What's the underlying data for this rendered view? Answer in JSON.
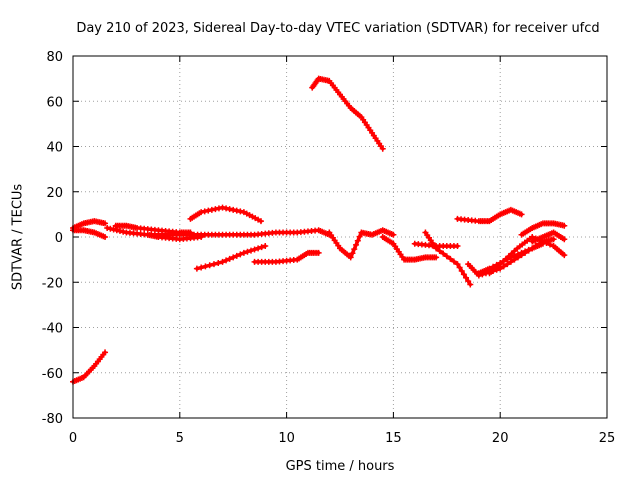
{
  "chart_data": {
    "type": "scatter",
    "title": "Day 210 of 2023, Sidereal Day-to-day VTEC variation (SDTVAR) for receiver ufcd",
    "xlabel": "GPS time / hours",
    "ylabel": "SDTVAR / TECUs",
    "xlim": [
      0,
      25
    ],
    "ylim": [
      -80,
      80
    ],
    "xticks": [
      "0",
      "5",
      "10",
      "15",
      "20",
      "25"
    ],
    "yticks": [
      "80",
      "60",
      "40",
      "20",
      "0",
      "-20",
      "-40",
      "-60",
      "-80"
    ],
    "grid": true,
    "marker_color": "#ff0000",
    "series": [
      {
        "name": "s1",
        "x": [
          0.0,
          0.5,
          1.0,
          1.5
        ],
        "y": [
          4,
          6,
          7,
          6
        ]
      },
      {
        "name": "s2",
        "x": [
          0.0,
          0.5,
          1.0,
          1.5
        ],
        "y": [
          3,
          3,
          2,
          0
        ]
      },
      {
        "name": "s3",
        "x": [
          0.0,
          0.5,
          1.0,
          1.5
        ],
        "y": [
          -64,
          -62,
          -57,
          -51
        ]
      },
      {
        "name": "s4",
        "x": [
          1.6,
          2.5,
          3.5,
          4.5,
          5.5,
          6.5,
          7.5,
          8.5,
          9.5,
          10.5,
          11.5,
          12.0
        ],
        "y": [
          4,
          2,
          1,
          1,
          1,
          1,
          1,
          1,
          2,
          2,
          3,
          1
        ]
      },
      {
        "name": "s5",
        "x": [
          2.0,
          2.5,
          3.0,
          4.0,
          5.0,
          5.5
        ],
        "y": [
          5,
          5,
          4,
          3,
          2,
          2
        ]
      },
      {
        "name": "s6",
        "x": [
          3.5,
          4.0,
          5.0,
          6.0
        ],
        "y": [
          1,
          0,
          -1,
          0
        ]
      },
      {
        "name": "s7",
        "x": [
          5.5,
          6.0,
          7.0,
          8.0,
          8.8
        ],
        "y": [
          8,
          11,
          13,
          11,
          7
        ]
      },
      {
        "name": "s8",
        "x": [
          5.8,
          7.0,
          8.0,
          9.0
        ],
        "y": [
          -14,
          -11,
          -7,
          -4
        ]
      },
      {
        "name": "s9",
        "x": [
          8.5,
          9.5,
          10.5,
          11.0,
          11.5
        ],
        "y": [
          -11,
          -11,
          -10,
          -7,
          -7
        ]
      },
      {
        "name": "s10",
        "x": [
          11.2,
          11.5,
          12.0,
          12.5,
          13.0,
          13.5,
          14.0,
          14.5
        ],
        "y": [
          66,
          70,
          69,
          63,
          57,
          53,
          46,
          39
        ]
      },
      {
        "name": "s11",
        "x": [
          12.0,
          12.5,
          13.0,
          13.5,
          14.0,
          14.5,
          15.0
        ],
        "y": [
          2,
          -5,
          -9,
          2,
          1,
          3,
          1
        ]
      },
      {
        "name": "s12",
        "x": [
          14.5,
          15.0,
          15.5,
          16.0,
          16.5,
          17.0
        ],
        "y": [
          0,
          -3,
          -10,
          -10,
          -9,
          -9
        ]
      },
      {
        "name": "s13",
        "x": [
          16.0,
          17.0,
          18.0
        ],
        "y": [
          -3,
          -4,
          -4
        ]
      },
      {
        "name": "s14",
        "x": [
          16.5,
          17.0,
          18.0,
          18.6
        ],
        "y": [
          2,
          -5,
          -12,
          -21
        ]
      },
      {
        "name": "s15",
        "x": [
          18.0,
          19.0,
          19.5,
          20.0,
          20.5,
          21.0
        ],
        "y": [
          8,
          7,
          7,
          10,
          12,
          10
        ]
      },
      {
        "name": "s16",
        "x": [
          18.5,
          19.0,
          20.0,
          21.0,
          22.0,
          22.5
        ],
        "y": [
          -12,
          -17,
          -14,
          -8,
          -2,
          -1
        ]
      },
      {
        "name": "s17",
        "x": [
          19.0,
          19.5,
          20.5,
          21.5,
          22.0
        ],
        "y": [
          -16,
          -14,
          -9,
          -5,
          -3
        ]
      },
      {
        "name": "s18",
        "x": [
          19.5,
          20.0,
          20.8,
          21.5,
          22.5,
          23.0
        ],
        "y": [
          -16,
          -12,
          -5,
          0,
          -4,
          -8
        ]
      },
      {
        "name": "s19",
        "x": [
          21.0,
          21.5,
          22.0,
          22.5,
          23.0
        ],
        "y": [
          1,
          4,
          6,
          6,
          5
        ]
      },
      {
        "name": "s20",
        "x": [
          21.5,
          22.0,
          22.5,
          23.0
        ],
        "y": [
          -2,
          0,
          2,
          -1
        ]
      }
    ]
  }
}
